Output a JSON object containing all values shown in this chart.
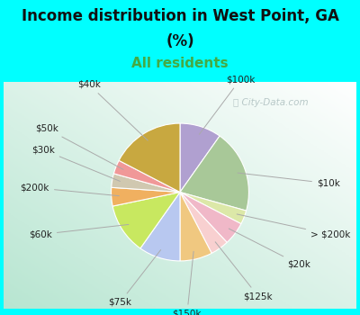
{
  "title_line1": "Income distribution in West Point, GA",
  "title_line2": "(%)",
  "subtitle": "All residents",
  "title_fontsize": 12,
  "subtitle_fontsize": 11,
  "background_color": "#00FFFF",
  "chart_bg_top": "#e8f8f0",
  "chart_bg_bot": "#b8e8d0",
  "slices": [
    {
      "label": "$100k",
      "value": 9,
      "color": "#b0a0d0"
    },
    {
      "label": "$10k",
      "value": 18,
      "color": "#a8c898"
    },
    {
      "label": "> $200k",
      "value": 3,
      "color": "#dce8a8"
    },
    {
      "label": "$20k",
      "value": 5,
      "color": "#f0b8c8"
    },
    {
      "label": "$125k",
      "value": 4,
      "color": "#f8d0d0"
    },
    {
      "label": "$150k",
      "value": 7,
      "color": "#f0c880"
    },
    {
      "label": "$75k",
      "value": 9,
      "color": "#b8c8f0"
    },
    {
      "label": "$60k",
      "value": 11,
      "color": "#c8e860"
    },
    {
      "label": "$200k",
      "value": 4,
      "color": "#f0b060"
    },
    {
      "label": "$30k",
      "value": 3,
      "color": "#d0c8b0"
    },
    {
      "label": "$50k",
      "value": 3,
      "color": "#f09898"
    },
    {
      "label": "$40k",
      "value": 16,
      "color": "#c8a840"
    }
  ],
  "label_fontsize": 7.5,
  "label_color": "#222222",
  "line_color": "#aaaaaa",
  "watermark_color": "#b8c8c8",
  "watermark_text": "ⓘ City-Data.com",
  "watermark_fontsize": 7.5
}
